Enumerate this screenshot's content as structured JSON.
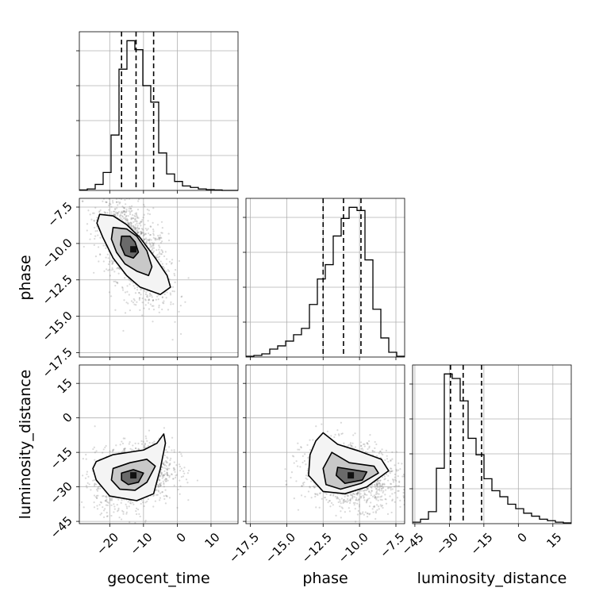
{
  "chart_data": {
    "type": "corner",
    "grid": true,
    "parameters": [
      "geocent_time",
      "phase",
      "luminosity_distance"
    ],
    "labels": {
      "x": [
        "geocent_time",
        "phase",
        "luminosity_distance"
      ],
      "y": [
        "phase",
        "luminosity_distance"
      ]
    },
    "ranges": {
      "geocent_time": [
        -29,
        18
      ],
      "phase": [
        -17.8,
        -6.9
      ],
      "luminosity_distance": [
        -46,
        23
      ]
    },
    "ticks": {
      "geocent_time": [
        -20,
        -10,
        0,
        10
      ],
      "phase": [
        -17.5,
        -15.0,
        -12.5,
        -10.0,
        -7.5
      ],
      "luminosity_distance": [
        -45,
        -30,
        -15,
        0,
        15
      ]
    },
    "tick_labels": {
      "geocent_time": [
        "−20",
        "−10",
        "0",
        "10"
      ],
      "phase": [
        "−17.5",
        "−15.0",
        "−12.5",
        "−10.0",
        "−7.5"
      ],
      "luminosity_distance": [
        "−45",
        "−30",
        "−15",
        "0",
        "15"
      ]
    },
    "histograms": [
      {
        "parameter": "geocent_time",
        "bin_edges": [
          -29,
          -26.65,
          -24.3,
          -21.95,
          -19.6,
          -17.25,
          -14.9,
          -12.55,
          -10.2,
          -7.85,
          -5.5,
          -3.15,
          -0.8,
          1.55,
          3.9,
          6.25,
          8.6,
          10.95,
          13.3,
          15.65,
          18
        ],
        "counts": [
          0.3,
          1,
          4,
          12,
          37,
          81,
          100,
          94,
          70,
          59,
          25,
          11,
          6,
          3,
          2,
          1,
          0.5,
          0.3,
          0,
          0
        ],
        "quantiles": [
          -16.5,
          -12.2,
          -7.0
        ]
      },
      {
        "parameter": "phase",
        "bin_edges": [
          -17.8,
          -17.255,
          -16.71,
          -16.165,
          -15.62,
          -15.075,
          -14.53,
          -13.985,
          -13.44,
          -12.895,
          -12.35,
          -11.805,
          -11.26,
          -10.715,
          -10.17,
          -9.625,
          -9.08,
          -8.535,
          -7.99,
          -7.445,
          -6.9
        ],
        "counts": [
          0.5,
          1,
          2,
          5,
          7,
          10,
          14,
          18,
          33,
          49,
          58,
          76,
          87,
          94,
          92,
          61,
          30,
          12,
          3,
          0.5
        ],
        "quantiles": [
          -12.5,
          -11.1,
          -9.9
        ]
      },
      {
        "parameter": "luminosity_distance",
        "bin_edges": [
          -46,
          -42.55,
          -39.1,
          -35.65,
          -32.2,
          -28.75,
          -25.3,
          -21.85,
          -18.4,
          -14.95,
          -11.5,
          -8.05,
          -4.6,
          -1.15,
          2.3,
          5.75,
          9.2,
          12.65,
          16.1,
          19.55,
          23
        ],
        "counts": [
          1,
          3,
          8,
          37,
          100,
          97,
          82,
          57,
          46,
          30,
          22,
          18,
          13,
          10,
          7,
          5,
          3,
          2,
          1,
          0.5
        ],
        "quantiles": [
          -29.5,
          -24.0,
          -16.0
        ]
      }
    ],
    "pairs": [
      {
        "x": "geocent_time",
        "y": "phase",
        "center": [
          -13,
          -10.4
        ],
        "spread": [
          4.5,
          1.6
        ],
        "correlation": -0.55,
        "contours": [
          [
            [
              -23,
              -8.0
            ],
            [
              -19,
              -8.1
            ],
            [
              -15,
              -8.7
            ],
            [
              -11,
              -9.6
            ],
            [
              -6.5,
              -11.0
            ],
            [
              -3,
              -12.2
            ],
            [
              -2,
              -13.0
            ],
            [
              -5,
              -13.5
            ],
            [
              -11,
              -13.0
            ],
            [
              -15,
              -12.2
            ],
            [
              -19,
              -11.0
            ],
            [
              -22,
              -9.6
            ],
            [
              -23.8,
              -8.6
            ]
          ],
          [
            [
              -19,
              -8.9
            ],
            [
              -15,
              -9.0
            ],
            [
              -12,
              -9.5
            ],
            [
              -9,
              -10.5
            ],
            [
              -7.5,
              -11.6
            ],
            [
              -8.5,
              -12.2
            ],
            [
              -12,
              -11.9
            ],
            [
              -15.5,
              -11.4
            ],
            [
              -18,
              -10.6
            ],
            [
              -19.5,
              -9.7
            ]
          ],
          [
            [
              -16.5,
              -9.5
            ],
            [
              -14,
              -9.5
            ],
            [
              -12.5,
              -9.9
            ],
            [
              -11.5,
              -10.6
            ],
            [
              -13,
              -11.0
            ],
            [
              -15.5,
              -10.8
            ],
            [
              -16.8,
              -10.1
            ]
          ]
        ]
      },
      {
        "x": "geocent_time",
        "y": "luminosity_distance",
        "center": [
          -13,
          -25
        ],
        "spread": [
          5,
          6
        ],
        "correlation": 0.2,
        "contours": [
          [
            [
              -24,
              -19
            ],
            [
              -19,
              -16
            ],
            [
              -10,
              -14
            ],
            [
              -6,
              -11
            ],
            [
              -4,
              -7
            ],
            [
              -3.5,
              -11
            ],
            [
              -5,
              -22
            ],
            [
              -7,
              -33
            ],
            [
              -12,
              -36
            ],
            [
              -20,
              -34
            ],
            [
              -24,
              -27
            ],
            [
              -25,
              -22
            ]
          ],
          [
            [
              -19,
              -22
            ],
            [
              -14,
              -19.5
            ],
            [
              -9,
              -18
            ],
            [
              -6.5,
              -21
            ],
            [
              -9,
              -28
            ],
            [
              -12.5,
              -31.5
            ],
            [
              -17,
              -31
            ],
            [
              -19.5,
              -27
            ]
          ],
          [
            [
              -16.5,
              -24
            ],
            [
              -13,
              -22.5
            ],
            [
              -10,
              -24
            ],
            [
              -11.5,
              -28
            ],
            [
              -14.5,
              -29
            ],
            [
              -16.5,
              -27
            ]
          ]
        ]
      },
      {
        "x": "phase",
        "y": "luminosity_distance",
        "center": [
          -10.6,
          -25
        ],
        "spread": [
          1.4,
          6
        ],
        "correlation": -0.2,
        "contours": [
          [
            [
              -12.5,
              -6.5
            ],
            [
              -11.5,
              -11.5
            ],
            [
              -10,
              -14.5
            ],
            [
              -8.5,
              -18
            ],
            [
              -8,
              -23
            ],
            [
              -9.5,
              -30
            ],
            [
              -11,
              -33
            ],
            [
              -12.5,
              -32
            ],
            [
              -13.5,
              -25
            ],
            [
              -13.4,
              -16
            ],
            [
              -13,
              -10
            ]
          ],
          [
            [
              -11.9,
              -15
            ],
            [
              -10.7,
              -19.5
            ],
            [
              -9,
              -21
            ],
            [
              -8.7,
              -24
            ],
            [
              -9.9,
              -28.5
            ],
            [
              -11.3,
              -31
            ],
            [
              -12.3,
              -29
            ],
            [
              -12.5,
              -22
            ]
          ],
          [
            [
              -11.5,
              -21.5
            ],
            [
              -10.5,
              -22.5
            ],
            [
              -9.5,
              -23.5
            ],
            [
              -9.8,
              -27
            ],
            [
              -11,
              -28.5
            ],
            [
              -11.6,
              -25
            ]
          ]
        ]
      }
    ]
  }
}
